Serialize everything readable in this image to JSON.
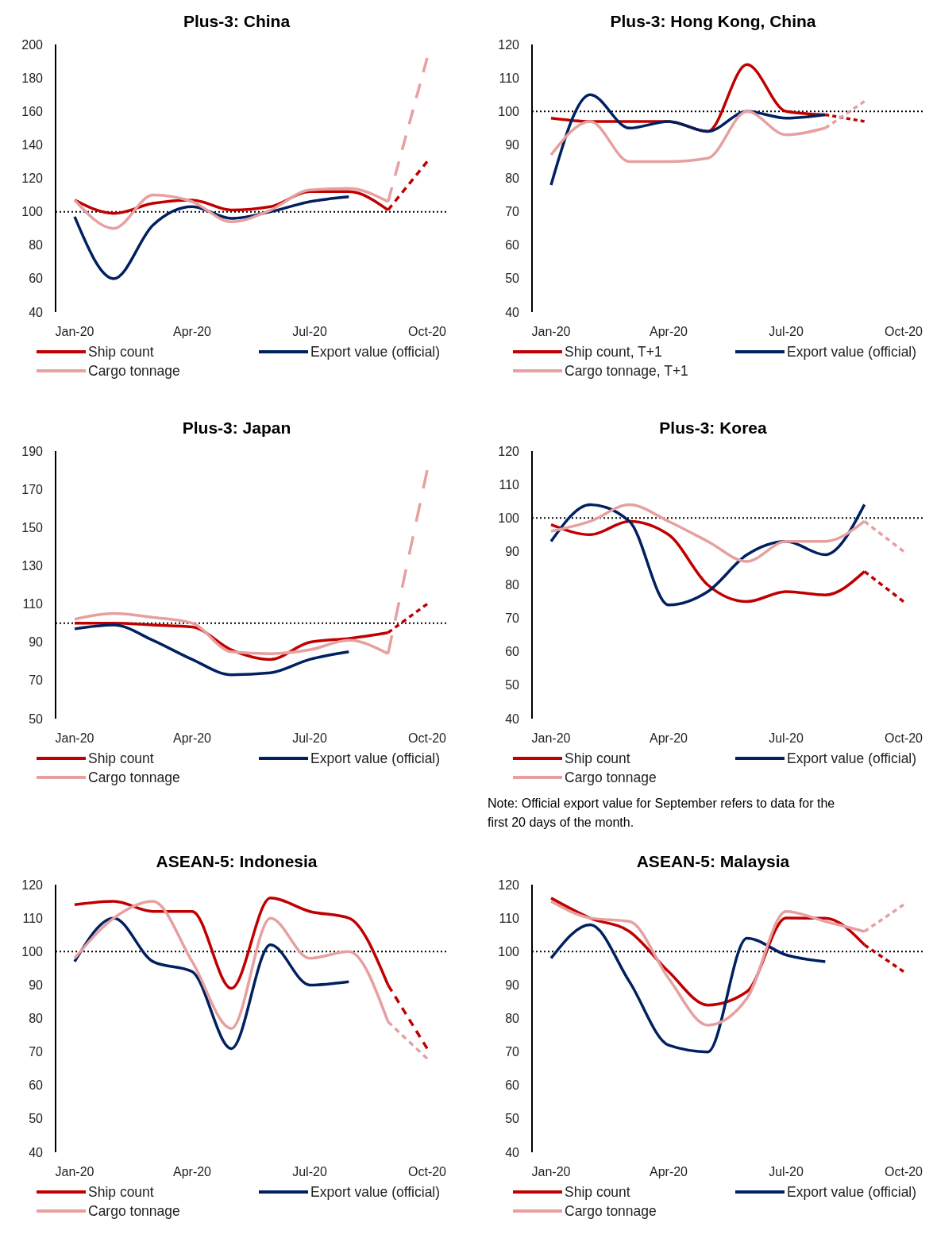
{
  "chart_data": [
    {
      "type": "line",
      "title": "Plus-3: China",
      "categories": [
        "Jan-20",
        null,
        null,
        "Apr-20",
        null,
        null,
        "Jul-20",
        null,
        null,
        "Oct-20"
      ],
      "ylim": [
        40,
        200
      ],
      "yticks": [
        40,
        60,
        80,
        100,
        120,
        140,
        160,
        180,
        200
      ],
      "legend": "bottom",
      "line_style": "solid",
      "ref_lines": [
        {
          "axis": "y",
          "value": 100,
          "color": "#000000",
          "line_style": "dotted"
        }
      ],
      "series": [
        {
          "name": "Ship count",
          "color": "#c00000",
          "values": [
            107,
            99,
            105,
            107,
            101,
            103,
            112,
            112,
            101,
            null
          ]
        },
        {
          "name": "Export value (official)",
          "color": "#002060",
          "values": [
            97,
            60,
            92,
            103,
            96,
            100,
            106,
            109,
            null,
            null
          ]
        },
        {
          "name": "Cargo tonnage",
          "color": "#e6a0a0",
          "values": [
            107,
            90,
            110,
            106,
            94,
            101,
            113,
            114,
            106,
            null
          ]
        },
        {
          "color": "#c00000",
          "line_style": "dashed",
          "values": [
            null,
            null,
            null,
            null,
            null,
            null,
            null,
            null,
            101,
            130
          ]
        },
        {
          "color": "#e6a0a0",
          "line_style": "dashed",
          "values": [
            null,
            null,
            null,
            null,
            null,
            null,
            null,
            null,
            106,
            192
          ]
        }
      ]
    },
    {
      "type": "line",
      "title": "Plus-3: Hong Kong, China",
      "categories": [
        "Jan-20",
        null,
        null,
        "Apr-20",
        null,
        null,
        "Jul-20",
        null,
        null,
        "Oct-20"
      ],
      "ylim": [
        40,
        120
      ],
      "yticks": [
        40,
        50,
        60,
        70,
        80,
        90,
        100,
        110,
        120
      ],
      "legend": "bottom",
      "line_style": "solid",
      "ref_lines": [
        {
          "axis": "y",
          "value": 100,
          "color": "#000000",
          "line_style": "dotted"
        }
      ],
      "series": [
        {
          "name": "Ship count, T+1",
          "color": "#c00000",
          "values": [
            98,
            97,
            97,
            97,
            94,
            114,
            100,
            99,
            null,
            null
          ]
        },
        {
          "name": "Export value (official)",
          "color": "#002060",
          "values": [
            78,
            105,
            95,
            97,
            94,
            100,
            98,
            99,
            null,
            null
          ]
        },
        {
          "name": "Cargo tonnage, T+1",
          "color": "#e6a0a0",
          "values": [
            87,
            97,
            85,
            85,
            86,
            100,
            93,
            95,
            null,
            null
          ]
        },
        {
          "color": "#c00000",
          "line_style": "dashed",
          "values": [
            null,
            null,
            null,
            null,
            null,
            null,
            null,
            99,
            97,
            null
          ]
        },
        {
          "color": "#e6a0a0",
          "line_style": "dashed",
          "values": [
            null,
            null,
            null,
            null,
            null,
            null,
            null,
            95,
            103,
            null
          ]
        }
      ]
    },
    {
      "type": "line",
      "title": "Plus-3: Japan",
      "categories": [
        "Jan-20",
        null,
        null,
        "Apr-20",
        null,
        null,
        "Jul-20",
        null,
        null,
        "Oct-20"
      ],
      "ylim": [
        50,
        190
      ],
      "yticks": [
        50,
        70,
        90,
        110,
        130,
        150,
        170,
        190
      ],
      "legend": "bottom",
      "line_style": "solid",
      "ref_lines": [
        {
          "axis": "y",
          "value": 100,
          "color": "#000000",
          "line_style": "dotted"
        }
      ],
      "series": [
        {
          "name": "Ship count",
          "color": "#c00000",
          "values": [
            100,
            100,
            99,
            98,
            86,
            81,
            90,
            92,
            95,
            null
          ]
        },
        {
          "name": "Export value (official)",
          "color": "#002060",
          "values": [
            97,
            99,
            91,
            81,
            73,
            74,
            81,
            85,
            null,
            null
          ]
        },
        {
          "name": "Cargo tonnage",
          "color": "#e6a0a0",
          "values": [
            102,
            105,
            103,
            100,
            85,
            84,
            86,
            91,
            84,
            null
          ]
        },
        {
          "color": "#c00000",
          "line_style": "dashed",
          "values": [
            null,
            null,
            null,
            null,
            null,
            null,
            null,
            null,
            95,
            110
          ]
        },
        {
          "color": "#e6a0a0",
          "line_style": "dashed",
          "values": [
            null,
            null,
            null,
            null,
            null,
            null,
            null,
            null,
            84,
            180
          ]
        }
      ]
    },
    {
      "type": "line",
      "title": "Plus-3: Korea",
      "categories": [
        "Jan-20",
        null,
        null,
        "Apr-20",
        null,
        null,
        "Jul-20",
        null,
        null,
        "Oct-20"
      ],
      "ylim": [
        40,
        120
      ],
      "yticks": [
        40,
        50,
        60,
        70,
        80,
        90,
        100,
        110,
        120
      ],
      "legend": "bottom",
      "line_style": "solid",
      "ref_lines": [
        {
          "axis": "y",
          "value": 100,
          "color": "#000000",
          "line_style": "dotted"
        }
      ],
      "annotations": [
        "Note: Official export value for September refers to data for the first 20 days of the month."
      ],
      "series": [
        {
          "name": "Ship count",
          "color": "#c00000",
          "values": [
            98,
            95,
            99,
            95,
            80,
            75,
            78,
            77,
            84,
            null
          ]
        },
        {
          "name": "Export value (official)",
          "color": "#002060",
          "values": [
            93,
            104,
            99,
            74,
            78,
            89,
            93,
            89,
            104,
            null
          ]
        },
        {
          "name": "Cargo tonnage",
          "color": "#e6a0a0",
          "values": [
            96,
            99,
            104,
            99,
            93,
            87,
            93,
            93,
            99,
            null
          ]
        },
        {
          "color": "#c00000",
          "line_style": "dashed",
          "values": [
            null,
            null,
            null,
            null,
            null,
            null,
            null,
            null,
            84,
            75
          ]
        },
        {
          "color": "#e6a0a0",
          "line_style": "dashed",
          "values": [
            null,
            null,
            null,
            null,
            null,
            null,
            null,
            null,
            99,
            90
          ]
        }
      ]
    },
    {
      "type": "line",
      "title": "ASEAN-5: Indonesia",
      "categories": [
        "Jan-20",
        null,
        null,
        "Apr-20",
        null,
        null,
        "Jul-20",
        null,
        null,
        "Oct-20"
      ],
      "ylim": [
        40,
        120
      ],
      "yticks": [
        40,
        50,
        60,
        70,
        80,
        90,
        100,
        110,
        120
      ],
      "legend": "bottom",
      "line_style": "solid",
      "ref_lines": [
        {
          "axis": "y",
          "value": 100,
          "color": "#000000",
          "line_style": "dotted"
        }
      ],
      "series": [
        {
          "name": "Ship count",
          "color": "#c00000",
          "values": [
            114,
            115,
            112,
            112,
            89,
            116,
            112,
            110,
            90,
            null
          ]
        },
        {
          "name": "Export value (official)",
          "color": "#002060",
          "values": [
            97,
            110,
            97,
            94,
            71,
            102,
            90,
            91,
            null,
            null
          ]
        },
        {
          "name": "Cargo tonnage",
          "color": "#e6a0a0",
          "values": [
            98,
            110,
            115,
            97,
            77,
            110,
            98,
            100,
            79,
            null
          ]
        },
        {
          "color": "#c00000",
          "line_style": "dashed",
          "values": [
            null,
            null,
            null,
            null,
            null,
            null,
            null,
            null,
            90,
            71
          ]
        },
        {
          "color": "#e6a0a0",
          "line_style": "dashed",
          "values": [
            null,
            null,
            null,
            null,
            null,
            null,
            null,
            null,
            79,
            68
          ]
        }
      ]
    },
    {
      "type": "line",
      "title": "ASEAN-5: Malaysia",
      "categories": [
        "Jan-20",
        null,
        null,
        "Apr-20",
        null,
        null,
        "Jul-20",
        null,
        null,
        "Oct-20"
      ],
      "ylim": [
        40,
        120
      ],
      "yticks": [
        40,
        50,
        60,
        70,
        80,
        90,
        100,
        110,
        120
      ],
      "legend": "bottom",
      "line_style": "solid",
      "ref_lines": [
        {
          "axis": "y",
          "value": 100,
          "color": "#000000",
          "line_style": "dotted"
        }
      ],
      "series": [
        {
          "name": "Ship count",
          "color": "#c00000",
          "values": [
            116,
            110,
            106,
            94,
            84,
            88,
            110,
            110,
            102,
            null
          ]
        },
        {
          "name": "Export value (official)",
          "color": "#002060",
          "values": [
            98,
            108,
            91,
            72,
            70,
            104,
            99,
            97,
            null,
            null
          ]
        },
        {
          "name": "Cargo tonnage",
          "color": "#e6a0a0",
          "values": [
            115,
            110,
            109,
            92,
            78,
            86,
            112,
            109,
            106,
            null
          ]
        },
        {
          "color": "#c00000",
          "line_style": "dashed",
          "values": [
            null,
            null,
            null,
            null,
            null,
            null,
            null,
            null,
            102,
            94
          ]
        },
        {
          "color": "#e6a0a0",
          "line_style": "dashed",
          "values": [
            null,
            null,
            null,
            null,
            null,
            null,
            null,
            null,
            106,
            114
          ]
        }
      ]
    }
  ]
}
